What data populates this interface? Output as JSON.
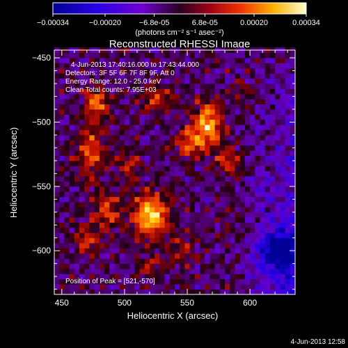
{
  "chart_data": {
    "type": "heatmap",
    "title": "Reconstructed RHESSI Image",
    "xlabel": "Heliocentric X (arcsec)",
    "ylabel": "Heliocentric Y (arcsec)",
    "xlim": [
      444,
      636
    ],
    "ylim": [
      -634,
      -444
    ],
    "x_ticks": [
      "450",
      "500",
      "550",
      "600"
    ],
    "x_tick_values": [
      450,
      500,
      550,
      600
    ],
    "y_ticks": [
      "-450",
      "-500",
      "-550",
      "-600"
    ],
    "y_tick_values": [
      -450,
      -500,
      -550,
      -600
    ],
    "colorbar": {
      "range": [
        -0.00034,
        0.00034
      ],
      "ticks": [
        "-0.00034",
        "-0.00020",
        "-6.8e-05",
        "6.8e-05",
        "0.00020",
        "0.00034"
      ],
      "tick_values": [
        -0.00034,
        -0.0002,
        -6.8e-05,
        6.8e-05,
        0.0002,
        0.00034
      ],
      "unit": "(photons cm⁻² s⁻¹ asec⁻²)"
    },
    "annotations": {
      "time_range": "4-Jun-2013 17:40:16.000 to 17:43:44.000",
      "detectors": "Detectors: 3F 5F 6F 7F 8F 9F, Att 0",
      "energy": "Energy Range: 12.0 - 25.0 keV",
      "clean": "Clean    Total counts: 7.95E+03",
      "peak": "Position of Peak = [521,-570]"
    },
    "peak": [
      521,
      -570
    ],
    "sources": [
      {
        "x": 521,
        "y": -572,
        "sx": 10,
        "sy": 12,
        "amp": 1.0
      },
      {
        "x": 566,
        "y": -502,
        "sx": 9,
        "sy": 12,
        "amp": 0.85
      },
      {
        "x": 552,
        "y": -517,
        "sx": 8,
        "sy": 8,
        "amp": 0.55
      },
      {
        "x": 478,
        "y": -484,
        "sx": 7,
        "sy": 7,
        "amp": 0.7
      },
      {
        "x": 527,
        "y": -482,
        "sx": 9,
        "sy": 7,
        "amp": 0.5
      },
      {
        "x": 473,
        "y": -522,
        "sx": 8,
        "sy": 16,
        "amp": 0.55
      },
      {
        "x": 486,
        "y": -568,
        "sx": 8,
        "sy": 9,
        "amp": 0.55
      },
      {
        "x": 470,
        "y": -590,
        "sx": 8,
        "sy": 8,
        "amp": 0.45
      },
      {
        "x": 503,
        "y": -532,
        "sx": 7,
        "sy": 8,
        "amp": 0.4
      },
      {
        "x": 584,
        "y": -530,
        "sx": 8,
        "sy": 7,
        "amp": 0.45
      },
      {
        "x": 543,
        "y": -600,
        "sx": 10,
        "sy": 8,
        "amp": 0.35
      },
      {
        "x": 520,
        "y": -612,
        "sx": 8,
        "sy": 6,
        "amp": 0.3
      },
      {
        "x": 598,
        "y": -475,
        "sx": 7,
        "sy": 6,
        "amp": 0.25
      }
    ],
    "negative_region": {
      "x": 622,
      "y": -600,
      "sx": 10,
      "sy": 10,
      "amp": -0.85
    }
  },
  "footer": {
    "timestamp": "4-Jun-2013 12:58"
  }
}
